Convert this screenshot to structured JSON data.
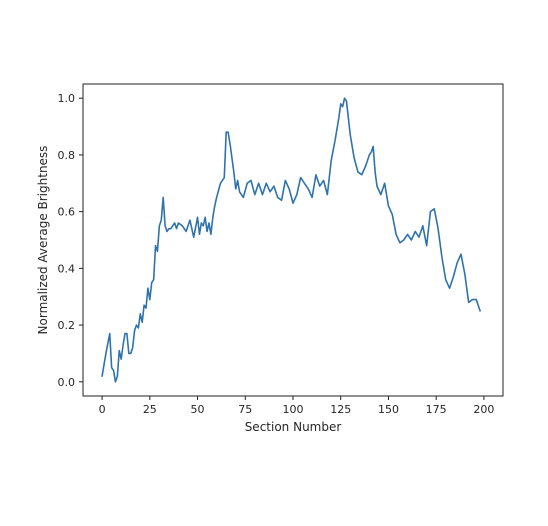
{
  "chart_data": {
    "type": "line",
    "title": "",
    "xlabel": "Section Number",
    "ylabel": "Normalized Average Brightness",
    "xlim": [
      -10,
      210
    ],
    "ylim": [
      -0.05,
      1.05
    ],
    "xticks": [
      0,
      25,
      50,
      75,
      100,
      125,
      150,
      175,
      200
    ],
    "yticks": [
      0.0,
      0.2,
      0.4,
      0.6,
      0.8,
      1.0
    ],
    "xtick_labels": [
      "0",
      "25",
      "50",
      "75",
      "100",
      "125",
      "150",
      "175",
      "200"
    ],
    "ytick_labels": [
      "0.0",
      "0.2",
      "0.4",
      "0.6",
      "0.8",
      "1.0"
    ],
    "grid": false,
    "legend": "none",
    "colors": {
      "series": "#2f73ad",
      "axes": "#222222"
    },
    "series": [
      {
        "x": [
          0,
          2,
          4,
          5,
          6,
          7,
          8,
          9,
          10,
          11,
          12,
          13,
          14,
          15,
          16,
          17,
          18,
          19,
          20,
          21,
          22,
          23,
          24,
          25,
          26,
          27,
          28,
          29,
          30,
          31,
          32,
          33,
          34,
          35,
          36,
          37,
          38,
          39,
          40,
          42,
          44,
          46,
          48,
          50,
          51,
          52,
          53,
          54,
          55,
          56,
          57,
          58,
          59,
          60,
          62,
          64,
          65,
          66,
          67,
          68,
          69,
          70,
          71,
          72,
          74,
          76,
          78,
          80,
          82,
          84,
          86,
          88,
          90,
          92,
          94,
          96,
          98,
          100,
          102,
          104,
          106,
          108,
          110,
          112,
          114,
          116,
          118,
          120,
          122,
          124,
          125,
          126,
          127,
          128,
          130,
          132,
          134,
          136,
          138,
          140,
          141,
          142,
          143,
          144,
          146,
          148,
          150,
          152,
          154,
          156,
          158,
          160,
          162,
          164,
          166,
          168,
          170,
          172,
          174,
          176,
          178,
          180,
          182,
          184,
          186,
          188,
          190,
          192,
          194,
          196,
          198
        ],
        "y": [
          0.02,
          0.1,
          0.17,
          0.05,
          0.04,
          0.0,
          0.02,
          0.11,
          0.08,
          0.13,
          0.17,
          0.17,
          0.1,
          0.1,
          0.12,
          0.18,
          0.2,
          0.19,
          0.24,
          0.21,
          0.27,
          0.26,
          0.33,
          0.29,
          0.35,
          0.36,
          0.48,
          0.46,
          0.55,
          0.57,
          0.65,
          0.55,
          0.53,
          0.54,
          0.54,
          0.55,
          0.56,
          0.54,
          0.56,
          0.55,
          0.53,
          0.57,
          0.51,
          0.58,
          0.52,
          0.56,
          0.55,
          0.58,
          0.53,
          0.56,
          0.52,
          0.58,
          0.62,
          0.65,
          0.7,
          0.72,
          0.88,
          0.88,
          0.84,
          0.79,
          0.74,
          0.68,
          0.71,
          0.67,
          0.65,
          0.7,
          0.71,
          0.66,
          0.7,
          0.66,
          0.7,
          0.67,
          0.69,
          0.65,
          0.64,
          0.71,
          0.68,
          0.63,
          0.66,
          0.72,
          0.7,
          0.68,
          0.65,
          0.73,
          0.69,
          0.71,
          0.66,
          0.78,
          0.85,
          0.93,
          0.98,
          0.97,
          1.0,
          0.99,
          0.87,
          0.79,
          0.74,
          0.73,
          0.76,
          0.8,
          0.81,
          0.83,
          0.74,
          0.69,
          0.66,
          0.7,
          0.62,
          0.59,
          0.52,
          0.49,
          0.5,
          0.52,
          0.5,
          0.53,
          0.51,
          0.55,
          0.48,
          0.6,
          0.61,
          0.54,
          0.44,
          0.36,
          0.33,
          0.37,
          0.42,
          0.45,
          0.38,
          0.28,
          0.29,
          0.29,
          0.25
        ]
      }
    ]
  }
}
